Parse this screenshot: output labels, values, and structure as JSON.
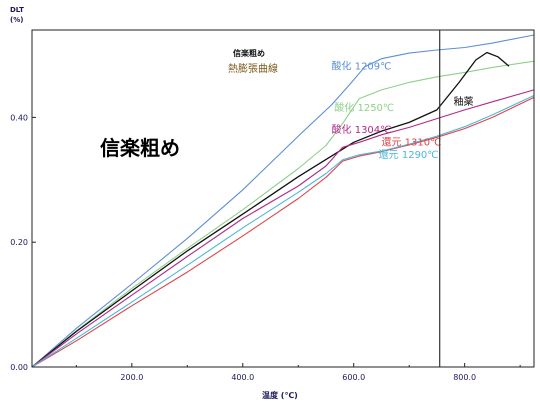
{
  "chart_data": {
    "type": "line",
    "title": "信楽粗め",
    "subtitle": "熱膨張曲線",
    "big_label": "信楽粗め",
    "ylabel_top": "DLT",
    "ylabel_unit": "(%)",
    "xlabel": "温度 (℃)",
    "xlim": [
      20,
      925
    ],
    "ylim": [
      0,
      0.54
    ],
    "xticks": [
      200,
      400,
      600,
      800
    ],
    "xtick_labels": [
      "200.0",
      "400.0",
      "600.0",
      "800.0"
    ],
    "yticks": [
      0,
      0.2,
      0.4
    ],
    "ytick_labels": [
      "0.00",
      "0.20",
      "0.40"
    ],
    "vline_x": 755,
    "series": [
      {
        "name": "酸化 1209℃",
        "color": "#5b8fd8",
        "x": [
          20,
          100,
          200,
          300,
          400,
          500,
          560,
          590,
          620,
          650,
          700,
          750,
          800,
          850,
          925
        ],
        "y": [
          0,
          0.062,
          0.133,
          0.206,
          0.284,
          0.37,
          0.42,
          0.45,
          0.481,
          0.494,
          0.503,
          0.508,
          0.512,
          0.519,
          0.532
        ]
      },
      {
        "name": "酸化 1250℃",
        "color": "#8fd08a",
        "x": [
          20,
          100,
          200,
          300,
          400,
          500,
          550,
          580,
          610,
          650,
          700,
          750,
          800,
          850,
          925
        ],
        "y": [
          0,
          0.058,
          0.126,
          0.19,
          0.252,
          0.318,
          0.355,
          0.39,
          0.43,
          0.444,
          0.456,
          0.465,
          0.472,
          0.48,
          0.49
        ]
      },
      {
        "name": "釉薬",
        "color": "#111111",
        "x": [
          20,
          100,
          200,
          300,
          400,
          500,
          560,
          600,
          650,
          700,
          750,
          790,
          820,
          840,
          860,
          880
        ],
        "y": [
          0,
          0.057,
          0.122,
          0.186,
          0.245,
          0.305,
          0.338,
          0.36,
          0.378,
          0.392,
          0.412,
          0.456,
          0.492,
          0.504,
          0.497,
          0.482
        ]
      },
      {
        "name": "酸化 1304℃",
        "color": "#b02a86",
        "x": [
          20,
          100,
          200,
          300,
          400,
          500,
          550,
          580,
          610,
          650,
          700,
          750,
          800,
          850,
          925
        ],
        "y": [
          0,
          0.053,
          0.115,
          0.177,
          0.238,
          0.29,
          0.322,
          0.352,
          0.36,
          0.372,
          0.384,
          0.398,
          0.412,
          0.425,
          0.444
        ]
      },
      {
        "name": "還元 1310℃",
        "color": "#e0454a",
        "x": [
          20,
          100,
          200,
          300,
          400,
          500,
          550,
          580,
          610,
          650,
          700,
          750,
          800,
          850,
          925
        ],
        "y": [
          0,
          0.042,
          0.098,
          0.152,
          0.21,
          0.27,
          0.304,
          0.33,
          0.338,
          0.345,
          0.356,
          0.368,
          0.382,
          0.4,
          0.432
        ]
      },
      {
        "name": "還元 1290℃",
        "color": "#4cb7d8",
        "x": [
          20,
          100,
          200,
          300,
          400,
          500,
          550,
          580,
          610,
          650,
          700,
          750,
          800,
          850,
          925
        ],
        "y": [
          0,
          0.046,
          0.104,
          0.163,
          0.223,
          0.28,
          0.31,
          0.332,
          0.34,
          0.346,
          0.357,
          0.37,
          0.385,
          0.404,
          0.435
        ]
      }
    ],
    "legend_labels": [
      {
        "text": "酸化 1209℃",
        "series": 0
      },
      {
        "text": "酸化 1250℃",
        "series": 1
      },
      {
        "text": "釉薬",
        "series": 2
      },
      {
        "text": "酸化 1304℃",
        "series": 3
      },
      {
        "text": "還元 1310℃",
        "series": 4
      },
      {
        "text": "還元 1290℃",
        "series": 5
      }
    ]
  }
}
